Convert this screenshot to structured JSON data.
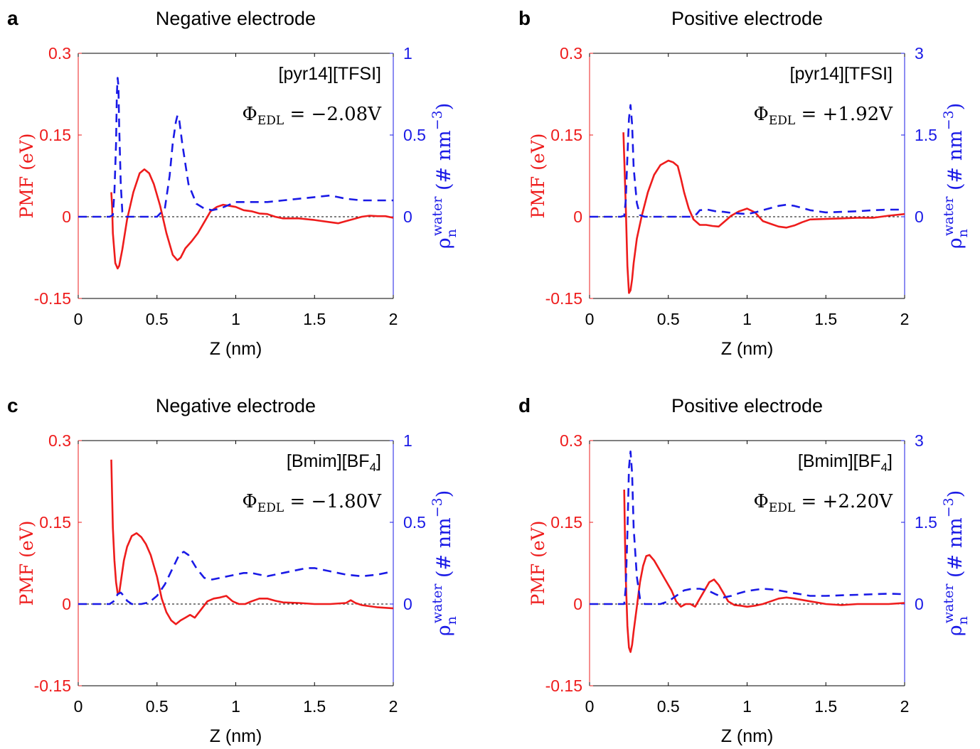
{
  "figure": {
    "panels": [
      {
        "panel_letter": "a",
        "title": "Negative electrode",
        "label_ionic_liquid": "[pyr14][TFSI]",
        "label_phi": "Φ",
        "label_phi_sub": "EDL",
        "label_phi_value": " = −2.08V",
        "xlabel": "Z (nm)",
        "ylabel_left": "PMF (eV)",
        "ylabel_right": "ρ",
        "ylabel_right_sup": "water",
        "ylabel_right_sub": "n",
        "ylabel_right_units": " (# nm",
        "ylabel_right_exp": "−3",
        "ylabel_right_close": ")",
        "xticks": [
          "0",
          "0.5",
          "1",
          "1.5",
          "2"
        ],
        "yticks_left": [
          "-0.15",
          "0",
          "0.15",
          "0.3"
        ],
        "yticks_right": [
          "0",
          "0.5",
          "1"
        ]
      },
      {
        "panel_letter": "b",
        "title": "Positive electrode",
        "label_ionic_liquid": "[pyr14][TFSI]",
        "label_phi": "Φ",
        "label_phi_sub": "EDL",
        "label_phi_value": " = +1.92V",
        "xlabel": "Z (nm)",
        "ylabel_left": "PMF (eV)",
        "ylabel_right": "ρ",
        "ylabel_right_sup": "water",
        "ylabel_right_sub": "n",
        "ylabel_right_units": " (# nm",
        "ylabel_right_exp": "−3",
        "ylabel_right_close": ")",
        "xticks": [
          "0",
          "0.5",
          "1",
          "1.5",
          "2"
        ],
        "yticks_left": [
          "-0.15",
          "0",
          "0.15",
          "0.3"
        ],
        "yticks_right": [
          "0",
          "1.5",
          "3"
        ]
      },
      {
        "panel_letter": "c",
        "title": "Negative electrode",
        "label_ionic_liquid": "[Bmim][BF",
        "label_ionic_liquid_sub": "4",
        "label_ionic_liquid_end": "]",
        "label_phi": "Φ",
        "label_phi_sub": "EDL",
        "label_phi_value": " = −1.80V",
        "xlabel": "Z (nm)",
        "ylabel_left": "PMF (eV)",
        "ylabel_right": "ρ",
        "ylabel_right_sup": "water",
        "ylabel_right_sub": "n",
        "ylabel_right_units": " (# nm",
        "ylabel_right_exp": "−3",
        "ylabel_right_close": ")",
        "xticks": [
          "0",
          "0.5",
          "1",
          "1.5",
          "2"
        ],
        "yticks_left": [
          "-0.15",
          "0",
          "0.15",
          "0.3"
        ],
        "yticks_right": [
          "0",
          "0.5",
          "1"
        ]
      },
      {
        "panel_letter": "d",
        "title": "Positive electrode",
        "label_ionic_liquid": "[Bmim][BF",
        "label_ionic_liquid_sub": "4",
        "label_ionic_liquid_end": "]",
        "label_phi": "Φ",
        "label_phi_sub": "EDL",
        "label_phi_value": " = +2.20V",
        "xlabel": "Z (nm)",
        "ylabel_left": "PMF (eV)",
        "ylabel_right": "ρ",
        "ylabel_right_sup": "water",
        "ylabel_right_sub": "n",
        "ylabel_right_units": " (# nm",
        "ylabel_right_exp": "−3",
        "ylabel_right_close": ")",
        "xticks": [
          "0",
          "0.5",
          "1",
          "1.5",
          "2"
        ],
        "yticks_left": [
          "-0.15",
          "0",
          "0.15",
          "0.3"
        ],
        "yticks_right": [
          "0",
          "1.5",
          "3"
        ]
      }
    ]
  },
  "colors": {
    "pmf": "#ee1c1c",
    "density": "#1a1ae6",
    "axis": "#000000",
    "zero_line": "#000000"
  },
  "chart_data": [
    {
      "type": "line",
      "title": "Negative electrode",
      "xlabel": "Z (nm)",
      "ylabel": "PMF (eV)",
      "y2label": "ρ_n^water (# nm^-3)",
      "xlim": [
        0,
        2
      ],
      "ylim": [
        -0.15,
        0.3
      ],
      "y2lim": [
        -0.5,
        1
      ],
      "series": [
        {
          "name": "PMF",
          "axis": "left",
          "style": "solid",
          "x": [
            0.21,
            0.215,
            0.22,
            0.235,
            0.25,
            0.26,
            0.28,
            0.31,
            0.35,
            0.39,
            0.42,
            0.45,
            0.48,
            0.52,
            0.56,
            0.6,
            0.63,
            0.65,
            0.68,
            0.72,
            0.76,
            0.8,
            0.84,
            0.88,
            0.92,
            0.96,
            1.0,
            1.05,
            1.1,
            1.15,
            1.2,
            1.25,
            1.3,
            1.35,
            1.4,
            1.5,
            1.6,
            1.65,
            1.7,
            1.75,
            1.8,
            1.85,
            1.9,
            1.95,
            2.0
          ],
          "y": [
            0.045,
            0.02,
            -0.03,
            -0.085,
            -0.095,
            -0.09,
            -0.06,
            -0.005,
            0.045,
            0.08,
            0.087,
            0.08,
            0.06,
            0.02,
            -0.03,
            -0.07,
            -0.08,
            -0.075,
            -0.058,
            -0.045,
            -0.03,
            -0.01,
            0.01,
            0.018,
            0.022,
            0.02,
            0.018,
            0.012,
            0.01,
            0.006,
            0.005,
            0.0,
            -0.003,
            -0.003,
            -0.003,
            -0.006,
            -0.01,
            -0.012,
            -0.008,
            -0.004,
            0.0,
            0.002,
            0.001,
            0.001,
            -0.002
          ]
        },
        {
          "name": "Water density",
          "axis": "right",
          "style": "dashed",
          "x": [
            0.0,
            0.2,
            0.22,
            0.23,
            0.24,
            0.245,
            0.25,
            0.255,
            0.26,
            0.27,
            0.28,
            0.3,
            0.32,
            0.4,
            0.5,
            0.55,
            0.58,
            0.6,
            0.62,
            0.63,
            0.64,
            0.66,
            0.7,
            0.75,
            0.8,
            0.85,
            0.9,
            0.95,
            1.0,
            1.1,
            1.2,
            1.3,
            1.4,
            1.5,
            1.6,
            1.65,
            1.7,
            1.8,
            1.9,
            2.0
          ],
          "y": [
            0.0,
            0.0,
            0.01,
            0.15,
            0.45,
            0.75,
            0.85,
            0.8,
            0.55,
            0.2,
            0.03,
            0.0,
            0.0,
            0.0,
            0.0,
            0.05,
            0.25,
            0.45,
            0.58,
            0.62,
            0.6,
            0.45,
            0.2,
            0.08,
            0.05,
            0.04,
            0.05,
            0.07,
            0.09,
            0.09,
            0.09,
            0.1,
            0.11,
            0.12,
            0.13,
            0.12,
            0.11,
            0.1,
            0.1,
            0.1
          ]
        }
      ]
    },
    {
      "type": "line",
      "title": "Positive electrode",
      "xlabel": "Z (nm)",
      "ylabel": "PMF (eV)",
      "y2label": "ρ_n^water (# nm^-3)",
      "xlim": [
        0,
        2
      ],
      "ylim": [
        -0.15,
        0.3
      ],
      "y2lim": [
        -1.5,
        3
      ],
      "series": [
        {
          "name": "PMF",
          "axis": "left",
          "style": "solid",
          "x": [
            0.215,
            0.22,
            0.23,
            0.24,
            0.25,
            0.26,
            0.27,
            0.28,
            0.3,
            0.33,
            0.37,
            0.41,
            0.45,
            0.5,
            0.53,
            0.56,
            0.58,
            0.6,
            0.63,
            0.66,
            0.7,
            0.74,
            0.78,
            0.82,
            0.86,
            0.9,
            0.95,
            1.0,
            1.05,
            1.1,
            1.15,
            1.2,
            1.25,
            1.3,
            1.35,
            1.4,
            1.5,
            1.6,
            1.7,
            1.8,
            1.9,
            2.0
          ],
          "y": [
            0.155,
            0.11,
            0.02,
            -0.09,
            -0.14,
            -0.135,
            -0.115,
            -0.085,
            -0.04,
            0.0,
            0.045,
            0.077,
            0.095,
            0.103,
            0.1,
            0.093,
            0.07,
            0.045,
            0.015,
            -0.005,
            -0.015,
            -0.015,
            -0.017,
            -0.018,
            -0.008,
            0.002,
            0.01,
            0.015,
            0.008,
            -0.008,
            -0.013,
            -0.018,
            -0.02,
            -0.016,
            -0.01,
            -0.005,
            -0.004,
            -0.003,
            -0.002,
            -0.002,
            0.002,
            0.005
          ]
        },
        {
          "name": "Water density",
          "axis": "right",
          "style": "dashed",
          "x": [
            0.0,
            0.2,
            0.22,
            0.23,
            0.24,
            0.25,
            0.26,
            0.27,
            0.28,
            0.3,
            0.32,
            0.35,
            0.4,
            0.5,
            0.6,
            0.65,
            0.68,
            0.7,
            0.75,
            0.8,
            0.85,
            0.9,
            0.95,
            1.0,
            1.05,
            1.1,
            1.15,
            1.2,
            1.25,
            1.3,
            1.35,
            1.4,
            1.5,
            1.6,
            1.7,
            1.8,
            1.9,
            2.0
          ],
          "y": [
            0.0,
            0.0,
            0.02,
            0.3,
            1.1,
            1.8,
            2.05,
            1.7,
            0.9,
            0.25,
            0.03,
            0.0,
            0.0,
            0.0,
            0.0,
            0.0,
            0.05,
            0.12,
            0.13,
            0.1,
            0.09,
            0.07,
            0.06,
            0.05,
            0.08,
            0.12,
            0.16,
            0.2,
            0.22,
            0.2,
            0.16,
            0.12,
            0.08,
            0.09,
            0.1,
            0.12,
            0.13,
            0.13
          ]
        }
      ]
    },
    {
      "type": "line",
      "title": "Negative electrode",
      "xlabel": "Z (nm)",
      "ylabel": "PMF (eV)",
      "y2label": "ρ_n^water (# nm^-3)",
      "xlim": [
        0,
        2
      ],
      "ylim": [
        -0.15,
        0.3
      ],
      "y2lim": [
        -0.5,
        1
      ],
      "series": [
        {
          "name": "PMF",
          "axis": "left",
          "style": "solid",
          "x": [
            0.21,
            0.215,
            0.22,
            0.23,
            0.24,
            0.25,
            0.26,
            0.27,
            0.29,
            0.31,
            0.34,
            0.37,
            0.4,
            0.43,
            0.46,
            0.5,
            0.53,
            0.56,
            0.59,
            0.62,
            0.65,
            0.68,
            0.71,
            0.74,
            0.78,
            0.82,
            0.86,
            0.9,
            0.94,
            0.98,
            1.02,
            1.06,
            1.1,
            1.15,
            1.2,
            1.25,
            1.3,
            1.4,
            1.5,
            1.6,
            1.7,
            1.73,
            1.76,
            1.8,
            1.9,
            2.0
          ],
          "y": [
            0.265,
            0.2,
            0.14,
            0.08,
            0.04,
            0.02,
            0.02,
            0.04,
            0.08,
            0.105,
            0.125,
            0.13,
            0.123,
            0.11,
            0.09,
            0.05,
            0.01,
            -0.015,
            -0.03,
            -0.037,
            -0.03,
            -0.025,
            -0.02,
            -0.025,
            -0.01,
            0.005,
            0.01,
            0.012,
            0.015,
            0.005,
            0.0,
            0.0,
            0.005,
            0.01,
            0.01,
            0.006,
            0.003,
            0.002,
            0.0,
            0.0,
            0.002,
            0.007,
            0.002,
            -0.002,
            -0.006,
            -0.008
          ]
        },
        {
          "name": "Water density",
          "axis": "right",
          "style": "dashed",
          "x": [
            0.0,
            0.2,
            0.23,
            0.25,
            0.27,
            0.29,
            0.31,
            0.34,
            0.4,
            0.45,
            0.5,
            0.55,
            0.6,
            0.64,
            0.67,
            0.7,
            0.75,
            0.8,
            0.85,
            0.9,
            0.95,
            1.0,
            1.05,
            1.1,
            1.15,
            1.2,
            1.3,
            1.4,
            1.45,
            1.5,
            1.6,
            1.7,
            1.8,
            1.9,
            2.0
          ],
          "y": [
            0.0,
            0.0,
            0.02,
            0.06,
            0.07,
            0.05,
            0.02,
            0.0,
            0.0,
            0.01,
            0.05,
            0.12,
            0.22,
            0.3,
            0.32,
            0.3,
            0.22,
            0.16,
            0.15,
            0.16,
            0.17,
            0.18,
            0.19,
            0.19,
            0.18,
            0.17,
            0.19,
            0.21,
            0.22,
            0.22,
            0.2,
            0.18,
            0.17,
            0.18,
            0.2
          ]
        }
      ]
    },
    {
      "type": "line",
      "title": "Positive electrode",
      "xlabel": "Z (nm)",
      "ylabel": "PMF (eV)",
      "y2label": "ρ_n^water (# nm^-3)",
      "xlim": [
        0,
        2
      ],
      "ylim": [
        -0.15,
        0.3
      ],
      "y2lim": [
        -1.5,
        3
      ],
      "series": [
        {
          "name": "PMF",
          "axis": "left",
          "style": "solid",
          "x": [
            0.22,
            0.225,
            0.23,
            0.24,
            0.25,
            0.26,
            0.27,
            0.28,
            0.3,
            0.32,
            0.34,
            0.36,
            0.38,
            0.41,
            0.44,
            0.48,
            0.52,
            0.55,
            0.58,
            0.61,
            0.64,
            0.67,
            0.7,
            0.73,
            0.76,
            0.79,
            0.82,
            0.85,
            0.88,
            0.92,
            0.96,
            1.0,
            1.05,
            1.1,
            1.15,
            1.2,
            1.25,
            1.3,
            1.4,
            1.5,
            1.6,
            1.7,
            1.8,
            1.9,
            2.0
          ],
          "y": [
            0.21,
            0.12,
            0.05,
            -0.04,
            -0.08,
            -0.088,
            -0.075,
            -0.05,
            -0.005,
            0.04,
            0.07,
            0.088,
            0.09,
            0.08,
            0.065,
            0.045,
            0.025,
            0.005,
            -0.005,
            0.0,
            0.0,
            -0.005,
            0.01,
            0.025,
            0.04,
            0.045,
            0.035,
            0.02,
            0.005,
            -0.002,
            -0.003,
            -0.005,
            -0.003,
            0.0,
            0.005,
            0.01,
            0.012,
            0.01,
            0.005,
            0.0,
            -0.002,
            0.0,
            0.0,
            0.0,
            0.002
          ]
        },
        {
          "name": "Water density",
          "axis": "right",
          "style": "dashed",
          "x": [
            0.0,
            0.22,
            0.23,
            0.24,
            0.25,
            0.26,
            0.27,
            0.28,
            0.3,
            0.32,
            0.35,
            0.45,
            0.5,
            0.55,
            0.6,
            0.65,
            0.7,
            0.75,
            0.8,
            0.85,
            0.9,
            0.95,
            1.0,
            1.05,
            1.1,
            1.15,
            1.2,
            1.3,
            1.4,
            1.5,
            1.6,
            1.7,
            1.8,
            1.9,
            2.0
          ],
          "y": [
            0.0,
            0.0,
            0.3,
            1.3,
            2.5,
            2.8,
            2.4,
            1.4,
            0.5,
            0.1,
            0.0,
            0.0,
            0.05,
            0.15,
            0.25,
            0.28,
            0.28,
            0.25,
            0.18,
            0.12,
            0.15,
            0.2,
            0.24,
            0.26,
            0.28,
            0.27,
            0.25,
            0.2,
            0.15,
            0.15,
            0.16,
            0.17,
            0.18,
            0.19,
            0.18
          ]
        }
      ]
    }
  ]
}
